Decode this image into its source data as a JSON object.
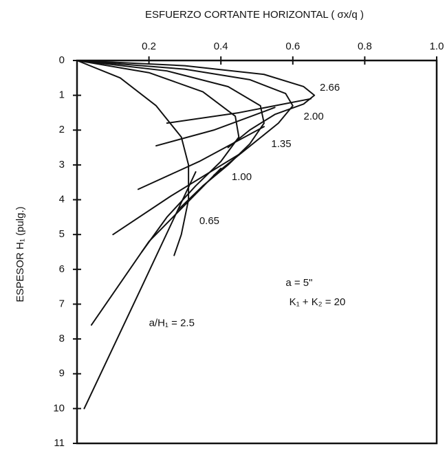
{
  "chart_data": {
    "type": "line",
    "title": "ESFUERZO CORTANTE HORIZONTAL ( σx/q )",
    "y_label": "ESPESOR H₁ (pulg.)",
    "xlim": [
      0,
      1
    ],
    "xticks": [
      0.2,
      0.4,
      0.6,
      0.8,
      {
        "value": 1,
        "label": "1.0"
      }
    ],
    "ylim": [
      0,
      11
    ],
    "yticks": [
      0,
      1,
      2,
      3,
      4,
      5,
      6,
      7,
      8,
      9,
      10,
      11
    ],
    "y_inverted": true,
    "x_axis_position": "top",
    "color": "#111111",
    "series": [
      {
        "x": [
          0,
          0.3,
          0.52,
          0.63,
          0.66,
          0.63,
          0.55,
          0.48,
          0.42
        ],
        "values": [
          0,
          0.15,
          0.4,
          0.75,
          1.0,
          1.25,
          1.55,
          2.0,
          2.5
        ]
      },
      {
        "x": [
          0,
          0.3,
          0.48,
          0.58,
          0.6,
          0.56,
          0.5,
          0.44,
          0.38
        ],
        "values": [
          0,
          0.25,
          0.55,
          0.95,
          1.3,
          1.8,
          2.3,
          2.8,
          3.3
        ]
      },
      {
        "x": [
          0,
          0.25,
          0.42,
          0.51,
          0.52,
          0.48,
          0.42,
          0.35,
          0.28
        ],
        "values": [
          0,
          0.3,
          0.75,
          1.3,
          1.8,
          2.4,
          3.0,
          3.6,
          4.3
        ]
      },
      {
        "x": [
          0,
          0.2,
          0.35,
          0.44,
          0.45,
          0.4,
          0.33,
          0.25,
          0.18
        ],
        "values": [
          0,
          0.35,
          0.9,
          1.6,
          2.2,
          2.9,
          3.6,
          4.5,
          5.5
        ]
      },
      {
        "x": [
          0,
          0.12,
          0.22,
          0.29,
          0.31,
          0.31,
          0.29,
          0.27
        ],
        "values": [
          0,
          0.5,
          1.3,
          2.2,
          3.0,
          4.0,
          5.0,
          5.6
        ]
      },
      {
        "x": [
          0.25,
          0.45,
          0.65
        ],
        "values": [
          1.8,
          1.5,
          1.1
        ]
      },
      {
        "x": [
          0.22,
          0.38,
          0.55
        ],
        "values": [
          2.45,
          2.0,
          1.35
        ]
      },
      {
        "x": [
          0.17,
          0.34,
          0.52
        ],
        "values": [
          3.7,
          2.9,
          1.9
        ]
      },
      {
        "x": [
          0.1,
          0.26,
          0.45
        ],
        "values": [
          5.0,
          3.9,
          2.7
        ]
      },
      {
        "x": [
          0.04,
          0.2,
          0.4
        ],
        "values": [
          7.6,
          5.2,
          3.1
        ]
      },
      {
        "x": [
          0.02,
          0.18,
          0.33
        ],
        "values": [
          10.0,
          6.5,
          3.2
        ]
      }
    ],
    "annotations": [
      {
        "text": "2.66",
        "x": 0.675,
        "y": 0.79
      },
      {
        "text": "2.00",
        "x": 0.63,
        "y": 1.62
      },
      {
        "text": "1.35",
        "x": 0.54,
        "y": 2.41
      },
      {
        "text": "1.00",
        "x": 0.43,
        "y": 3.36
      },
      {
        "text": "0.65",
        "x": 0.34,
        "y": 4.62
      },
      {
        "text": "a/H₁ = 2.5",
        "x": 0.2,
        "y": 7.55
      },
      {
        "text": "a = 5\"",
        "x": 0.58,
        "y": 6.4
      },
      {
        "text": "K₁ + K₂ = 20",
        "x": 0.59,
        "y": 6.95
      }
    ]
  }
}
